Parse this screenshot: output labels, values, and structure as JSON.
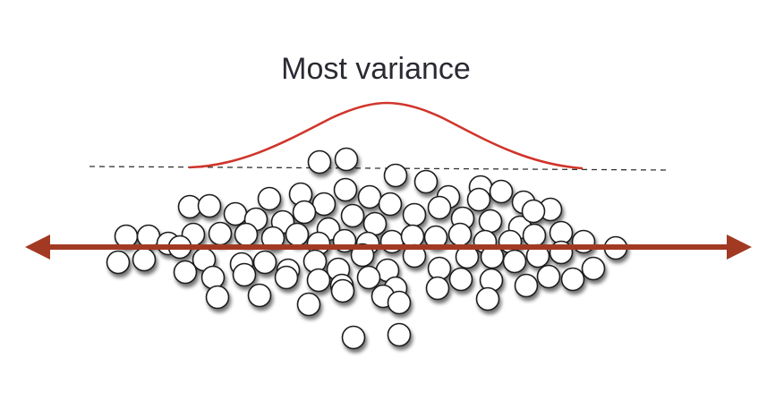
{
  "diagram": {
    "title": "Most variance",
    "colors": {
      "curve": "#d0352b",
      "axis_arrow": "#a23a23",
      "dashed_line": "#333333",
      "ball_fill": "#ffffff",
      "ball_stroke": "#1c1c1c",
      "ball_shadow": "#7a7a7a"
    },
    "elements": {
      "curve": "bell-curve",
      "baseline": "dashed-baseline",
      "axis": "principal-axis-double-arrow",
      "points": "data-points-cloud"
    }
  }
}
